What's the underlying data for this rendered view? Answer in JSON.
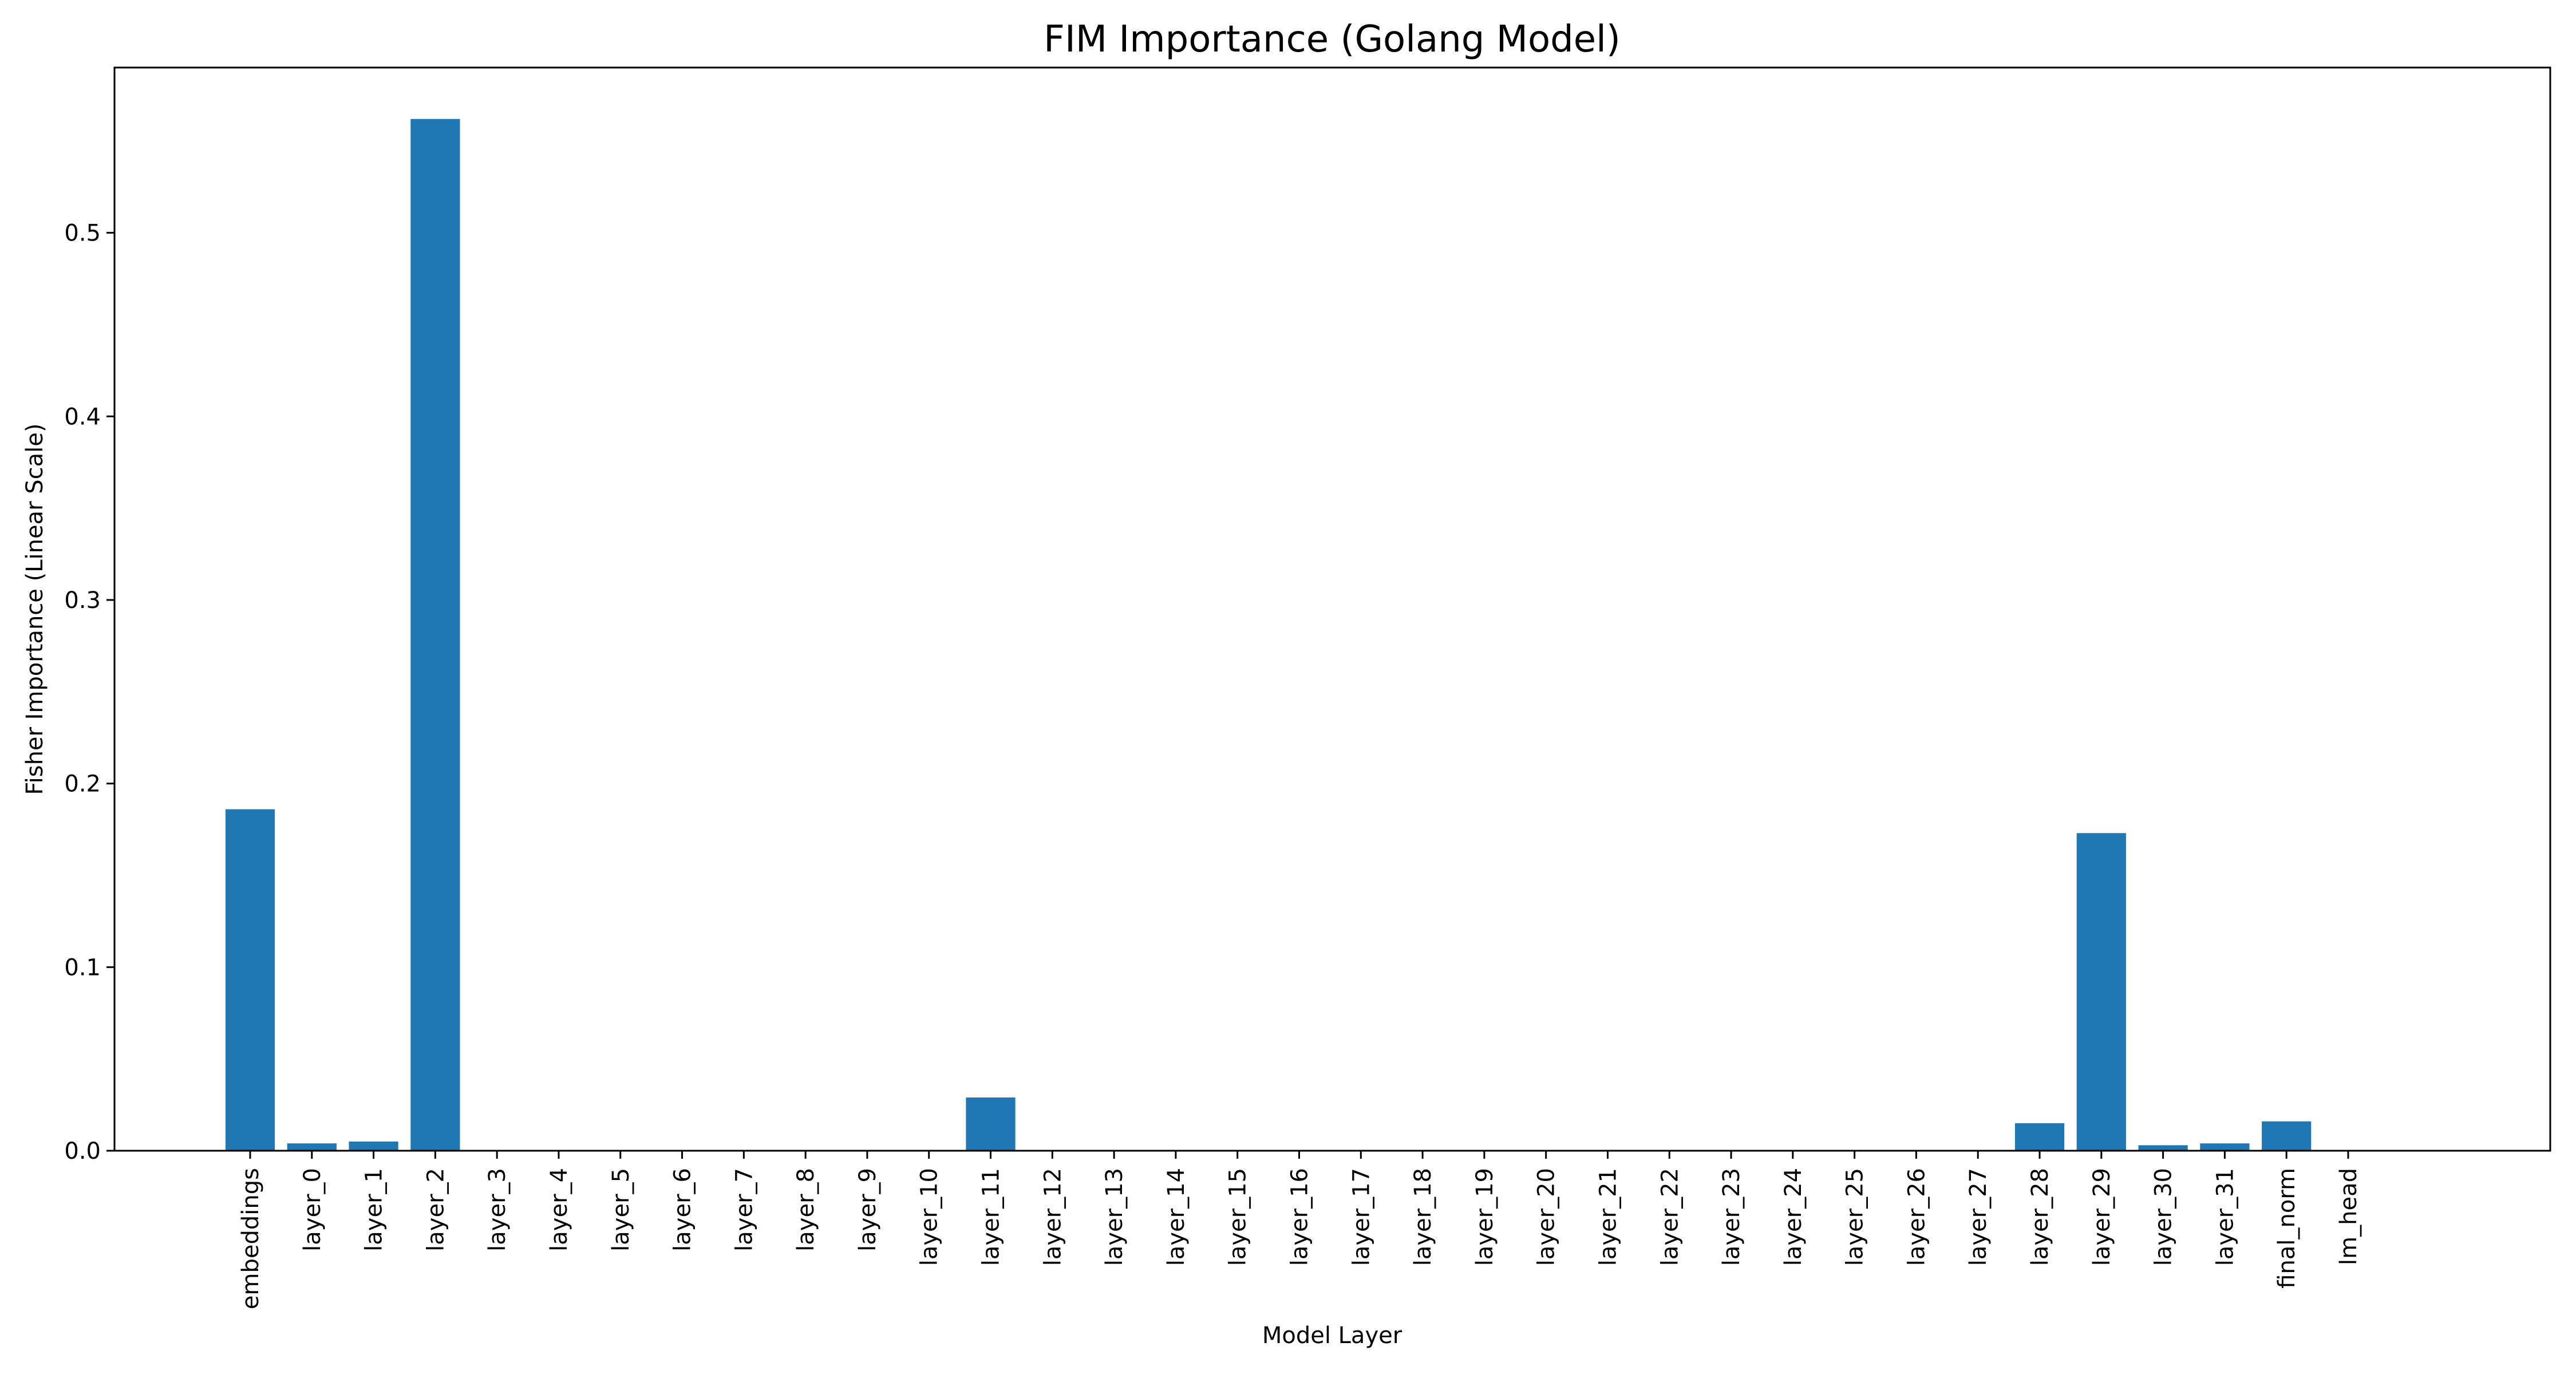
{
  "chart_data": {
    "type": "bar",
    "title": "FIM Importance (Golang Model)",
    "xlabel": "Model Layer",
    "ylabel": "Fisher Importance (Linear Scale)",
    "ylim": [
      0,
      0.59
    ],
    "yticks": [
      0.0,
      0.1,
      0.2,
      0.3,
      0.4,
      0.5
    ],
    "ytick_labels": [
      "0.0",
      "0.1",
      "0.2",
      "0.3",
      "0.4",
      "0.5"
    ],
    "grid": false,
    "legend": "none",
    "bar_color": "#1f77b4",
    "categories": [
      "embeddings",
      "layer_0",
      "layer_1",
      "layer_2",
      "layer_3",
      "layer_4",
      "layer_5",
      "layer_6",
      "layer_7",
      "layer_8",
      "layer_9",
      "layer_10",
      "layer_11",
      "layer_12",
      "layer_13",
      "layer_14",
      "layer_15",
      "layer_16",
      "layer_17",
      "layer_18",
      "layer_19",
      "layer_20",
      "layer_21",
      "layer_22",
      "layer_23",
      "layer_24",
      "layer_25",
      "layer_26",
      "layer_27",
      "layer_28",
      "layer_29",
      "layer_30",
      "layer_31",
      "final_norm",
      "lm_head"
    ],
    "values": [
      0.186,
      0.004,
      0.005,
      0.562,
      0.0,
      0.0,
      0.0,
      0.0,
      0.0,
      0.0,
      0.0,
      0.0,
      0.029,
      0.0,
      0.0,
      0.0,
      0.0,
      0.0,
      0.0,
      0.0,
      0.0,
      0.0,
      0.0,
      0.0,
      0.0,
      0.0,
      0.0,
      0.0,
      0.0,
      0.015,
      0.173,
      0.003,
      0.004,
      0.016,
      0.0
    ]
  }
}
